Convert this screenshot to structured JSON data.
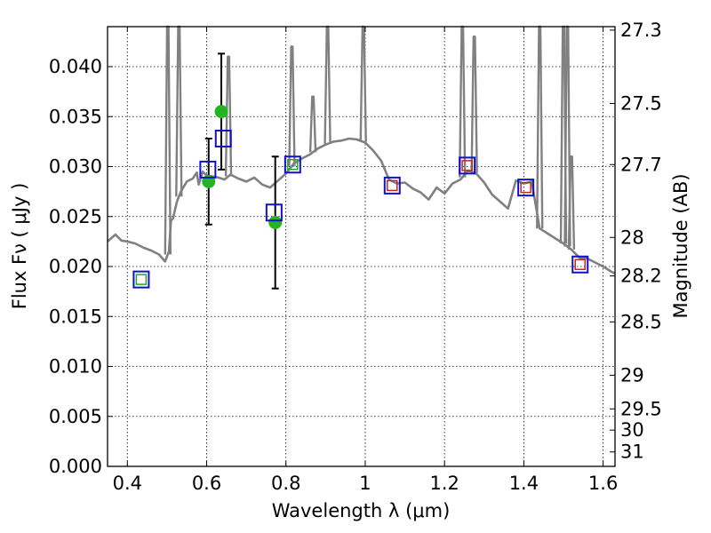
{
  "chart_data": {
    "type": "scatter",
    "title": "",
    "xlabel": "Wavelength  λ (μm)",
    "ylabel": "Flux  Fν  ( μJy )",
    "ylabel_right": "Magnitude (AB)",
    "xlim": [
      0.35,
      1.63
    ],
    "ylim": [
      0.0,
      0.044
    ],
    "grid": true,
    "legend": "none",
    "xticks": [
      "0.4",
      "0.6",
      "0.8",
      "1",
      "1.2",
      "1.4",
      "1.6"
    ],
    "xtick_values": [
      0.4,
      0.6,
      0.8,
      1.0,
      1.2,
      1.4,
      1.6
    ],
    "yticks": [
      "0.000",
      "0.005",
      "0.010",
      "0.015",
      "0.020",
      "0.025",
      "0.030",
      "0.035",
      "0.040"
    ],
    "ytick_values": [
      0.0,
      0.005,
      0.01,
      0.015,
      0.02,
      0.025,
      0.03,
      0.035,
      0.04
    ],
    "right_ticks": [
      "27.3",
      "27.5",
      "27.7",
      "28",
      "28.2",
      "28.5",
      "29",
      "29.5",
      "30",
      "31"
    ],
    "right_tick_values": [
      27.3,
      27.5,
      27.7,
      28.0,
      28.2,
      28.5,
      29.0,
      29.5,
      30.0,
      31.0
    ],
    "series": [
      {
        "kind": "line",
        "color": "#808080",
        "x": [
          0.35,
          0.37,
          0.385,
          0.4,
          0.42,
          0.44,
          0.46,
          0.48,
          0.495,
          0.505,
          0.51,
          0.515,
          0.525,
          0.535,
          0.55,
          0.565,
          0.575,
          0.58,
          0.59,
          0.6,
          0.615,
          0.63,
          0.645,
          0.66,
          0.68,
          0.7,
          0.72,
          0.74,
          0.76,
          0.78,
          0.8,
          0.82,
          0.84,
          0.86,
          0.88,
          0.9,
          0.92,
          0.94,
          0.96,
          0.98,
          1.0,
          1.02,
          1.04,
          1.06,
          1.08,
          1.1,
          1.12,
          1.14,
          1.16,
          1.18,
          1.2,
          1.22,
          1.24,
          1.26,
          1.28,
          1.3,
          1.32,
          1.34,
          1.36,
          1.38,
          1.4,
          1.42,
          1.44,
          1.46,
          1.48,
          1.5,
          1.52,
          1.54,
          1.56,
          1.58,
          1.6,
          1.62,
          1.63
        ],
        "y": [
          0.0225,
          0.0232,
          0.0226,
          0.0225,
          0.0223,
          0.0219,
          0.0216,
          0.0212,
          0.0205,
          0.0215,
          0.0246,
          0.0248,
          0.0265,
          0.0275,
          0.0285,
          0.0288,
          0.0294,
          0.0282,
          0.0295,
          0.0291,
          0.029,
          0.0289,
          0.0287,
          0.0292,
          0.0288,
          0.0285,
          0.0289,
          0.0282,
          0.0279,
          0.0286,
          0.0293,
          0.0303,
          0.0308,
          0.0312,
          0.0318,
          0.0322,
          0.0325,
          0.0326,
          0.0328,
          0.0327,
          0.0324,
          0.0316,
          0.0306,
          0.0287,
          0.0283,
          0.0284,
          0.0278,
          0.0274,
          0.0267,
          0.0279,
          0.0273,
          0.0283,
          0.0287,
          0.0296,
          0.0293,
          0.0284,
          0.0272,
          0.0265,
          0.0258,
          0.0286,
          0.0283,
          0.0285,
          0.0238,
          0.0233,
          0.0228,
          0.0223,
          0.0217,
          0.0209,
          0.0208,
          0.0204,
          0.02,
          0.0195,
          0.0193
        ]
      },
      {
        "kind": "emission-lines",
        "color": "#808080",
        "x": [
          0.502,
          0.53,
          0.655,
          0.815,
          0.868,
          0.905,
          0.995,
          1.245,
          1.275,
          1.44,
          1.5,
          1.51,
          1.52
        ],
        "y": [
          0.044,
          0.044,
          0.041,
          0.042,
          0.037,
          0.044,
          0.044,
          0.044,
          0.043,
          0.044,
          0.044,
          0.044,
          0.031
        ]
      },
      {
        "kind": "points",
        "marker": "circle",
        "color": "#22b522",
        "x": [
          0.605,
          0.637,
          0.773
        ],
        "y": [
          0.0285,
          0.0355,
          0.0244
        ],
        "yerr": [
          0.0043,
          0.0058,
          0.0066
        ]
      },
      {
        "kind": "points",
        "marker": "square-open",
        "color": "#1111cc",
        "x": [
          0.435,
          0.603,
          0.642,
          0.77,
          0.817,
          1.068,
          1.257,
          1.405,
          1.542
        ],
        "y": [
          0.0187,
          0.0297,
          0.0328,
          0.0254,
          0.0302,
          0.0281,
          0.0301,
          0.0279,
          0.0202
        ]
      },
      {
        "kind": "points",
        "marker": "square-open-small",
        "color": "#22aa22",
        "x": [
          0.435,
          0.817
        ],
        "y": [
          0.0187,
          0.0302
        ]
      },
      {
        "kind": "points",
        "marker": "square-open-small",
        "color": "#cc2222",
        "x": [
          1.068,
          1.257,
          1.405,
          1.542
        ],
        "y": [
          0.0281,
          0.0301,
          0.0279,
          0.0202
        ]
      }
    ]
  }
}
